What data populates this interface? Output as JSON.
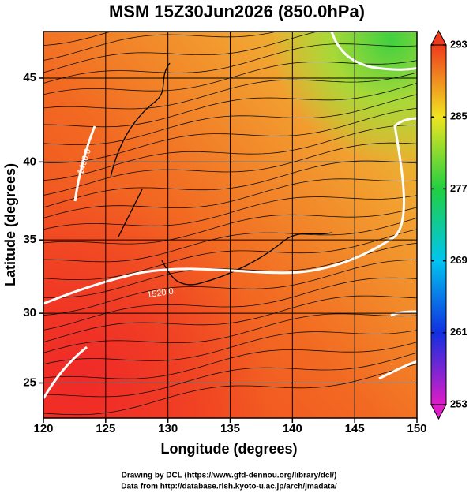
{
  "chart_data": {
    "type": "map",
    "title": "MSM 15Z30Jun2026 (850.0hPa)",
    "x_label": "Longitude (degrees)",
    "y_label": "Latitude  (degrees)",
    "projection": "mercator",
    "xlim": [
      120,
      150
    ],
    "ylim": [
      22.4,
      47.6
    ],
    "xticks": [
      120,
      125,
      130,
      135,
      140,
      145,
      150
    ],
    "yticks": [
      25,
      30,
      35,
      40,
      45
    ],
    "grid": true,
    "contour_labels": [
      "1490.0",
      "1520.0"
    ],
    "colorbar": {
      "lim": [
        253,
        293
      ],
      "ticks": [
        253,
        261,
        269,
        277,
        285,
        293
      ],
      "colors": [
        "#e01cc8",
        "#1030e0",
        "#00c4f0",
        "#20d040",
        "#f0e420",
        "#f03a1e"
      ]
    },
    "footer": [
      "Drawing by DCL (https://www.gfd-dennou.org/library/dcl/)",
      "Data from http://database.rish.kyoto-u.ac.jp/arch/jmadata/"
    ]
  }
}
